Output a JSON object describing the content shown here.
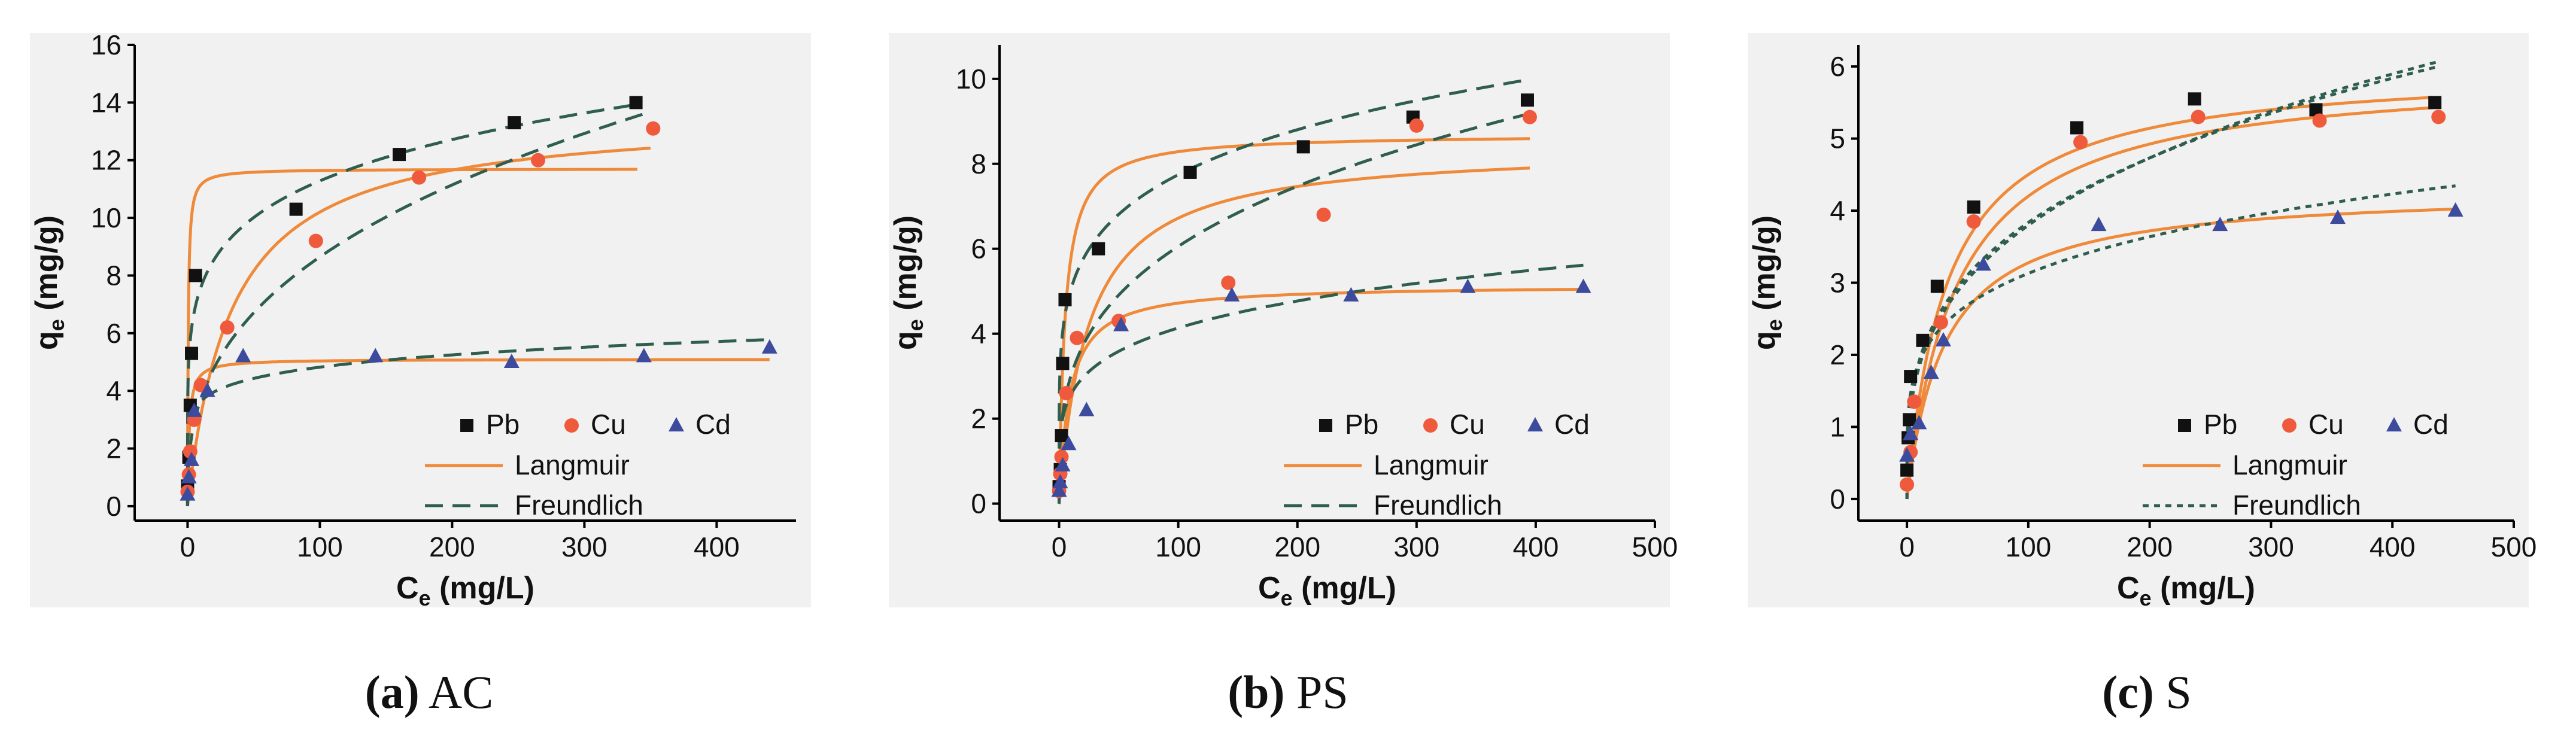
{
  "colors": {
    "Pb": "#111111",
    "Cu": "#ef5a3c",
    "Cd": "#3d4b9e",
    "langmuir": "#ef8a3a",
    "freundlich": "#2f5e4f"
  },
  "legend": {
    "pb": "Pb",
    "cu": "Cu",
    "cd": "Cd",
    "langmuir": "Langmuir",
    "freundlich": "Freundlich"
  },
  "captions": [
    {
      "letter": "(a)",
      "name": "AC"
    },
    {
      "letter": "(b)",
      "name": "PS"
    },
    {
      "letter": "(c)",
      "name": "S"
    }
  ],
  "chart_data": [
    {
      "type": "scatter",
      "title": "(a) AC",
      "xlabel_main": "C",
      "xlabel_sub": "e",
      "xlabel_unit": " (mg/L)",
      "ylabel_main": "q",
      "ylabel_sub": "e",
      "ylabel_unit": " (mg/g)",
      "xlim": [
        -40,
        460
      ],
      "ylim": [
        -0.5,
        16
      ],
      "xticks": [
        0,
        100,
        200,
        300,
        400
      ],
      "yticks": [
        0,
        2,
        4,
        6,
        8,
        10,
        12,
        14,
        16
      ],
      "freundlich_style": "long-dash",
      "series": [
        {
          "name": "Pb",
          "marker": "square",
          "x": [
            0,
            1,
            2,
            3,
            6,
            82,
            160,
            247,
            339
          ],
          "y": [
            0.7,
            1.7,
            3.5,
            5.3,
            8.0,
            10.3,
            12.2,
            13.3,
            14.0
          ]
        },
        {
          "name": "Cu",
          "marker": "circle",
          "x": [
            0,
            1,
            2,
            5,
            10,
            30,
            97,
            175,
            265,
            352
          ],
          "y": [
            0.5,
            1.1,
            1.9,
            3.0,
            4.2,
            6.2,
            9.2,
            11.4,
            12.0,
            13.1
          ]
        },
        {
          "name": "Cd",
          "marker": "triangle",
          "x": [
            0,
            1,
            3,
            5,
            15,
            42,
            142,
            245,
            345,
            440
          ],
          "y": [
            0.4,
            1.0,
            1.6,
            3.3,
            4.0,
            5.2,
            5.2,
            5.0,
            5.2,
            5.5
          ]
        }
      ],
      "fits": [
        {
          "name": "Langmuir Pb",
          "model": "langmuir",
          "qm": 11.7,
          "K": 2.0,
          "xmax": 340
        },
        {
          "name": "Langmuir Cu",
          "model": "langmuir",
          "qm": 13.6,
          "K": 0.03,
          "xmax": 350
        },
        {
          "name": "Langmuir Cd",
          "model": "langmuir",
          "qm": 5.1,
          "K": 0.8,
          "xmax": 440
        },
        {
          "name": "Freundlich Pb",
          "model": "freundlich",
          "Kf": 5.1,
          "n": 5.8,
          "xmax": 340
        },
        {
          "name": "Freundlich Cu",
          "model": "freundlich",
          "Kf": 1.6,
          "n": 2.73,
          "xmax": 350
        },
        {
          "name": "Freundlich Cd",
          "model": "freundlich",
          "Kf": 2.75,
          "n": 8.2,
          "xmax": 440
        }
      ]
    },
    {
      "type": "scatter",
      "title": "(b) PS",
      "xlabel_main": "C",
      "xlabel_sub": "e",
      "xlabel_unit": " (mg/L)",
      "ylabel_main": "q",
      "ylabel_sub": "e",
      "ylabel_unit": " (mg/g)",
      "xlim": [
        -50,
        500
      ],
      "ylim": [
        -0.4,
        10.8
      ],
      "xticks": [
        0,
        100,
        200,
        300,
        400,
        500
      ],
      "yticks": [
        0,
        2,
        4,
        6,
        8,
        10
      ],
      "freundlich_style": "long-dash",
      "series": [
        {
          "name": "Pb",
          "marker": "square",
          "x": [
            0,
            1,
            2,
            3,
            5,
            33,
            110,
            205,
            297,
            393
          ],
          "y": [
            0.4,
            0.8,
            1.6,
            3.3,
            4.8,
            6.0,
            7.8,
            8.4,
            9.1,
            9.5
          ]
        },
        {
          "name": "Cu",
          "marker": "circle",
          "x": [
            0,
            1,
            2,
            6,
            15,
            50,
            142,
            222,
            300,
            395
          ],
          "y": [
            0.3,
            0.7,
            1.1,
            2.6,
            3.9,
            4.3,
            5.2,
            6.8,
            8.9,
            9.1
          ]
        },
        {
          "name": "Cd",
          "marker": "triangle",
          "x": [
            0,
            1,
            3,
            8,
            23,
            52,
            145,
            245,
            343,
            440
          ],
          "y": [
            0.3,
            0.5,
            0.9,
            1.4,
            2.2,
            4.2,
            4.9,
            4.9,
            5.1,
            5.1
          ]
        }
      ],
      "fits": [
        {
          "name": "Langmuir Pb",
          "model": "langmuir",
          "qm": 8.7,
          "K": 0.2,
          "xmax": 395
        },
        {
          "name": "Langmuir Cu",
          "model": "langmuir",
          "qm": 8.4,
          "K": 0.04,
          "xmax": 395
        },
        {
          "name": "Langmuir Cd",
          "model": "langmuir",
          "qm": 5.15,
          "K": 0.11,
          "xmax": 440
        },
        {
          "name": "Freundlich Pb",
          "model": "freundlich",
          "Kf": 3.3,
          "n": 5.4,
          "xmax": 395
        },
        {
          "name": "Freundlich Cu",
          "model": "freundlich",
          "Kf": 1.5,
          "n": 3.3,
          "xmax": 395
        },
        {
          "name": "Freundlich Cd",
          "model": "freundlich",
          "Kf": 1.6,
          "n": 4.85,
          "xmax": 440
        }
      ]
    },
    {
      "type": "scatter",
      "title": "(c) S",
      "xlabel_main": "C",
      "xlabel_sub": "e",
      "xlabel_unit": " (mg/L)",
      "ylabel_main": "q",
      "ylabel_sub": "e",
      "ylabel_unit": " (mg/g)",
      "xlim": [
        -40,
        500
      ],
      "ylim": [
        -0.3,
        6.3
      ],
      "xticks": [
        0,
        100,
        200,
        300,
        400,
        500
      ],
      "yticks": [
        0,
        1,
        2,
        3,
        4,
        5,
        6
      ],
      "freundlich_style": "short-dash",
      "series": [
        {
          "name": "Pb",
          "marker": "square",
          "x": [
            0,
            1,
            2,
            3,
            13,
            25,
            55,
            140,
            237,
            337,
            435
          ],
          "y": [
            0.4,
            0.85,
            1.1,
            1.7,
            2.2,
            2.95,
            4.05,
            5.15,
            5.55,
            5.4,
            5.5
          ]
        },
        {
          "name": "Cu",
          "marker": "circle",
          "x": [
            0,
            3,
            6,
            28,
            55,
            143,
            240,
            340,
            438
          ],
          "y": [
            0.2,
            0.65,
            1.35,
            2.45,
            3.85,
            4.95,
            5.3,
            5.25,
            5.3
          ]
        },
        {
          "name": "Cd",
          "marker": "triangle",
          "x": [
            0,
            3,
            10,
            20,
            30,
            63,
            158,
            258,
            355,
            452
          ],
          "y": [
            0.6,
            0.9,
            1.05,
            1.75,
            2.2,
            3.25,
            3.8,
            3.8,
            3.9,
            4.0
          ]
        }
      ],
      "fits": [
        {
          "name": "Langmuir Pb",
          "model": "langmuir",
          "qm": 6.0,
          "K": 0.03,
          "xmax": 435
        },
        {
          "name": "Langmuir Cu",
          "model": "langmuir",
          "qm": 5.95,
          "K": 0.024,
          "xmax": 438
        },
        {
          "name": "Langmuir Cd",
          "model": "langmuir",
          "qm": 4.3,
          "K": 0.032,
          "xmax": 452
        },
        {
          "name": "Freundlich Pb",
          "model": "freundlich",
          "Kf": 0.95,
          "n": 3.3,
          "xmax": 435
        },
        {
          "name": "Freundlich Cu",
          "model": "freundlich",
          "Kf": 0.88,
          "n": 3.15,
          "xmax": 438
        },
        {
          "name": "Freundlich Cd",
          "model": "freundlich",
          "Kf": 1.15,
          "n": 4.6,
          "xmax": 452
        }
      ]
    }
  ]
}
